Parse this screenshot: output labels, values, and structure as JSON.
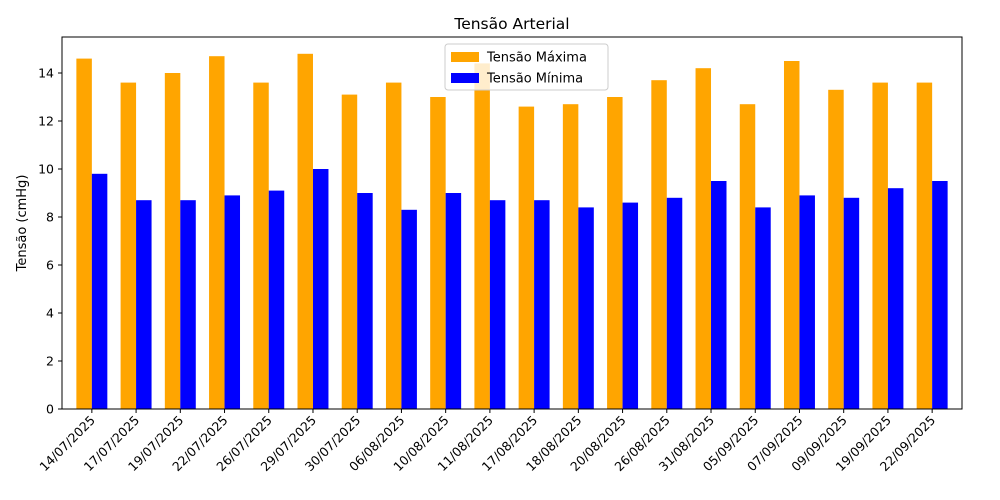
{
  "chart_data": {
    "type": "bar",
    "title": "Tensão Arterial",
    "xlabel": "",
    "ylabel": "Tensão (cmHg)",
    "ylim": [
      0,
      15.5
    ],
    "yticks": [
      0,
      2,
      4,
      6,
      8,
      10,
      12,
      14
    ],
    "grid": false,
    "legend_position": "top-center",
    "categories": [
      "14/07/2025",
      "17/07/2025",
      "19/07/2025",
      "22/07/2025",
      "26/07/2025",
      "29/07/2025",
      "30/07/2025",
      "06/08/2025",
      "10/08/2025",
      "11/08/2025",
      "17/08/2025",
      "18/08/2025",
      "20/08/2025",
      "26/08/2025",
      "31/08/2025",
      "05/09/2025",
      "07/09/2025",
      "09/09/2025",
      "19/09/2025",
      "22/09/2025"
    ],
    "series": [
      {
        "name": "Tensão Máxima",
        "color": "#FFA500",
        "values": [
          14.6,
          13.6,
          14.0,
          14.7,
          13.6,
          14.8,
          13.1,
          13.6,
          13.0,
          14.4,
          12.6,
          12.7,
          13.0,
          13.7,
          14.2,
          12.7,
          14.5,
          13.3,
          13.6,
          13.6
        ]
      },
      {
        "name": "Tensão Mínima",
        "color": "#0000FF",
        "values": [
          9.8,
          8.7,
          8.7,
          8.9,
          9.1,
          10.0,
          9.0,
          8.3,
          9.0,
          8.7,
          8.7,
          8.4,
          8.6,
          8.8,
          9.5,
          8.4,
          8.9,
          8.8,
          9.2,
          9.5
        ]
      }
    ]
  }
}
